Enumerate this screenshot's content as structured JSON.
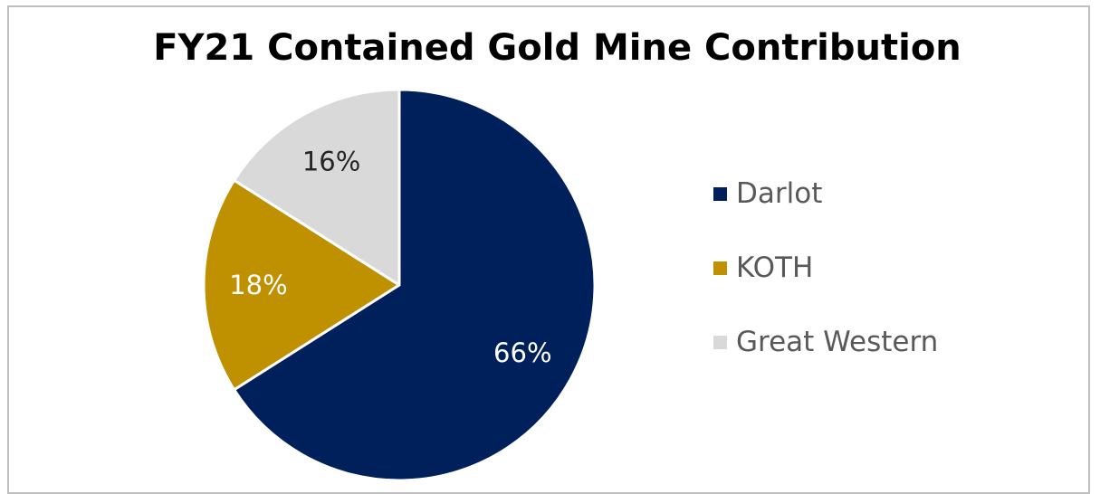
{
  "chart_data": {
    "type": "pie",
    "title": "FY21 Contained Gold Mine Contribution",
    "categories": [
      "Darlot",
      "KOTH",
      "Great Western"
    ],
    "values": [
      66,
      18,
      16
    ],
    "labels": [
      "66%",
      "18%",
      "16%"
    ],
    "colors": [
      "#00205b",
      "#bf9000",
      "#d9d9d9"
    ],
    "label_colors": [
      "#ffffff",
      "#ffffff",
      "#262626"
    ],
    "legend_position": "right",
    "start_angle": "12 o'clock",
    "direction": "clockwise"
  }
}
